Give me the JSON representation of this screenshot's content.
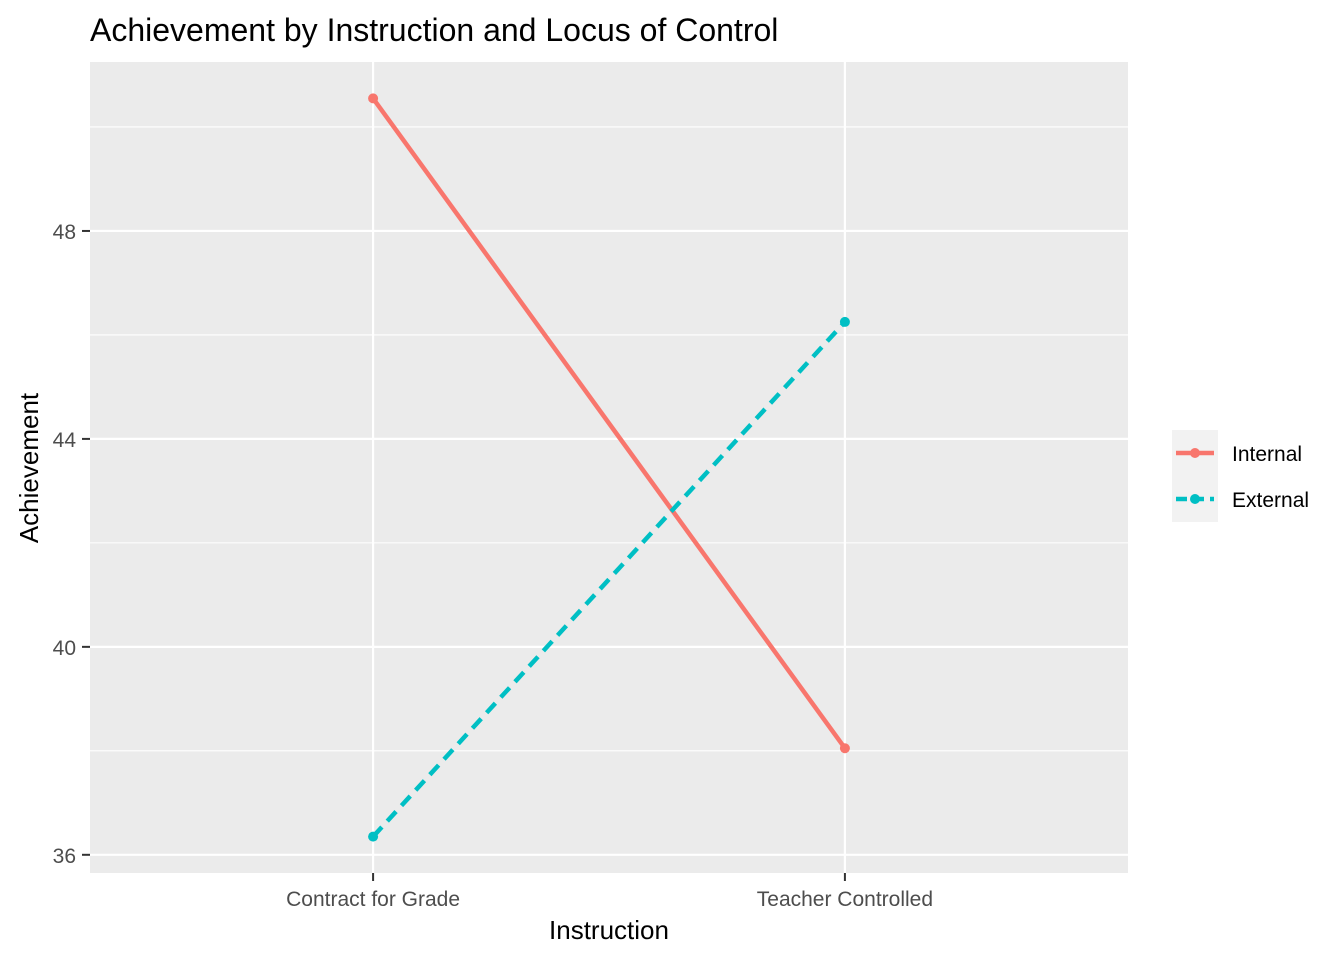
{
  "chart_data": {
    "type": "line",
    "title": "Achievement by Instruction and Locus of Control",
    "xlabel": "Instruction",
    "ylabel": "Achievement",
    "categories": [
      "Contract for Grade",
      "Teacher Controlled"
    ],
    "ylim": [
      35.65,
      51.25
    ],
    "yticks": [
      36,
      40,
      44,
      48
    ],
    "grid": true,
    "legend_position": "right",
    "series": [
      {
        "name": "Internal",
        "values": [
          50.55,
          38.05
        ],
        "color": "#F8766D",
        "linestyle": "solid"
      },
      {
        "name": "External",
        "values": [
          36.35,
          46.25
        ],
        "color": "#00BFC4",
        "linestyle": "dashed"
      }
    ]
  }
}
